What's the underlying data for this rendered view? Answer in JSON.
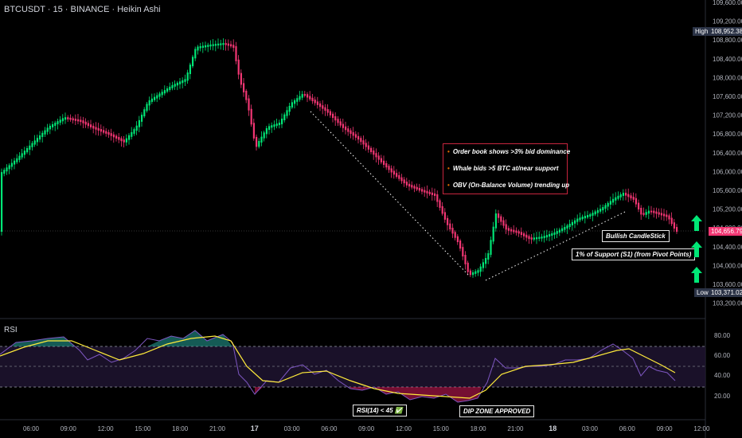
{
  "header": {
    "symbol": "BTCUSDT · 15 · BINANCE · Heikin Ashi"
  },
  "price_axis": {
    "ticks": [
      "109,600.00",
      "109,200.00",
      "108,800.00",
      "108,400.00",
      "108,000.00",
      "107,600.00",
      "107,200.00",
      "106,800.00",
      "106,400.00",
      "106,000.00",
      "105,600.00",
      "105,200.00",
      "104,800.00",
      "104,400.00",
      "104,000.00",
      "103,600.00",
      "103,200.00"
    ],
    "high_label": "High",
    "high_value": "108,952.38",
    "low_label": "Low",
    "low_value": "103,371.02",
    "current_value": "104,656.79"
  },
  "rsi": {
    "title": "RSI",
    "ticks": [
      "80.00",
      "60.00",
      "40.00",
      "20.00"
    ],
    "label_rsi": "RSI(14) < 45 ✅",
    "label_dip": "DIP ZONE APPROVED"
  },
  "time_axis": {
    "labels": [
      "06:00",
      "09:00",
      "12:00",
      "15:00",
      "18:00",
      "21:00",
      "17",
      "03:00",
      "06:00",
      "09:00",
      "12:00",
      "15:00",
      "18:00",
      "21:00",
      "18",
      "03:00",
      "06:00",
      "09:00",
      "12:00"
    ],
    "bold": [
      "17",
      "18"
    ]
  },
  "annotations": {
    "bullets": [
      "Order book shows >3% bid dominance",
      "Whale bids >5 BTC at/near support",
      "OBV (On-Balance Volume) trending up"
    ],
    "bullish": "Bullish CandleStick",
    "support": "1% of Support (S1) (from Pivot Points)"
  },
  "colors": {
    "up": "#00e676",
    "down": "#f23673",
    "rsi_line": "#7e57c2",
    "rsi_ma": "#ffeb3b",
    "accent_green": "#00e676"
  },
  "icons": [
    "arrow-up-icon",
    "arrow-up-icon",
    "arrow-up-icon"
  ]
}
